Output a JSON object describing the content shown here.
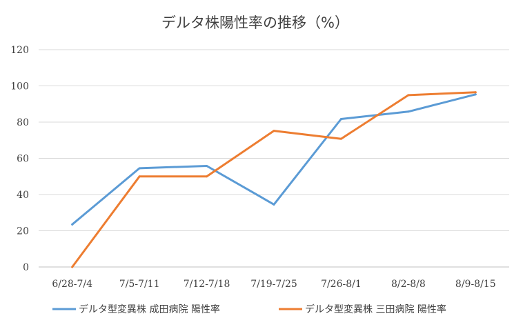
{
  "chart_data": {
    "type": "line",
    "title": "デルタ株陽性率の推移（%）",
    "xlabel": "",
    "ylabel": "",
    "categories": [
      "6/28-7/4",
      "7/5-7/11",
      "7/12-7/18",
      "7/19-7/25",
      "7/26-8/1",
      "8/2-8/8",
      "8/9-8/15"
    ],
    "ylim": [
      0,
      120
    ],
    "yticks": [
      0,
      20,
      40,
      60,
      80,
      100,
      120
    ],
    "grid": true,
    "legend_position": "bottom",
    "series": [
      {
        "name": "デルタ型変異株 成田病院 陽性率",
        "color": "#5B9BD5",
        "values": [
          23.5,
          54.5,
          55.8,
          34.5,
          81.7,
          85.8,
          95.3
        ]
      },
      {
        "name": "デルタ型変異株 三田病院 陽性率",
        "color": "#ED7D31",
        "values": [
          0,
          50,
          50,
          75.2,
          70.8,
          94.9,
          96.5
        ]
      }
    ]
  }
}
